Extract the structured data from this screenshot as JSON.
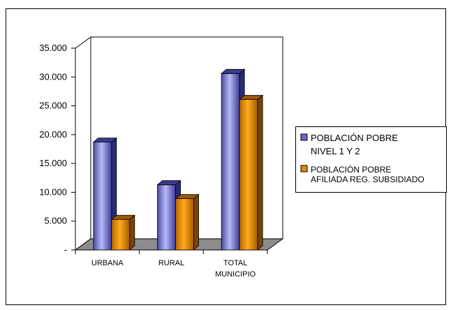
{
  "chart_data": {
    "type": "bar",
    "categories": [
      [
        "URBANA"
      ],
      [
        "RURAL"
      ],
      [
        "TOTAL",
        "MUNICIPIO"
      ]
    ],
    "series": [
      {
        "name": [
          "POBLACIÓN POBRE",
          "NIVEL 1 Y 2"
        ],
        "values": [
          18700,
          11300,
          30600
        ],
        "color": "#6666cc"
      },
      {
        "name": [
          "POBLACIÓN POBRE",
          "AFILIADA REG. SUBSIDIADO"
        ],
        "values": [
          5300,
          8900,
          26100
        ],
        "color": "#e08a00"
      }
    ],
    "y_ticks": [
      "-",
      "5.000",
      "10.000",
      "15.000",
      "20.000",
      "25.000",
      "30.000",
      "35.000"
    ],
    "ylim": [
      0,
      35000
    ],
    "style": "3d-clustered-column",
    "legend_position": "right",
    "grid": false
  }
}
